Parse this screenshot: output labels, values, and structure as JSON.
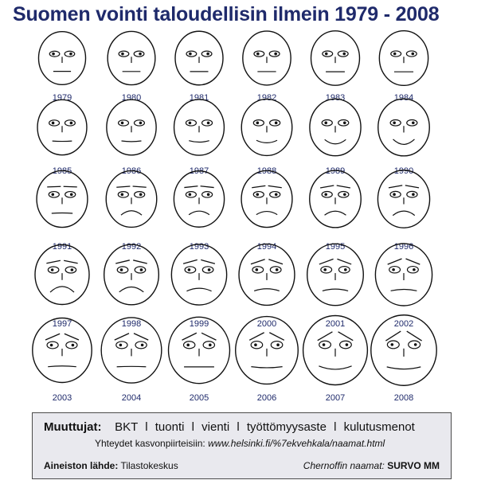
{
  "title": "Suomen vointi taloudellisin ilmein 1979 - 2008",
  "chart_data": {
    "type": "chernoff_faces",
    "title": "Suomen vointi taloudellisin ilmein 1979 - 2008",
    "variables": [
      "BKT",
      "tuonti",
      "vienti",
      "työttömyysaste",
      "kulutusmenot"
    ],
    "years": [
      "1979",
      "1980",
      "1981",
      "1982",
      "1983",
      "1984",
      "1985",
      "1986",
      "1987",
      "1988",
      "1989",
      "1990",
      "1991",
      "1992",
      "1993",
      "1994",
      "1995",
      "1996",
      "1997",
      "1998",
      "1999",
      "2000",
      "2001",
      "2002",
      "2003",
      "2004",
      "2005",
      "2006",
      "2007",
      "2008"
    ],
    "faces": [
      {
        "year": "1979",
        "size": 0.22,
        "mouth": 0.0,
        "brow": 0.0
      },
      {
        "year": "1980",
        "size": 0.24,
        "mouth": 0.0,
        "brow": 0.0
      },
      {
        "year": "1981",
        "size": 0.25,
        "mouth": 0.0,
        "brow": 0.0
      },
      {
        "year": "1982",
        "size": 0.26,
        "mouth": 0.0,
        "brow": 0.0
      },
      {
        "year": "1983",
        "size": 0.28,
        "mouth": 0.0,
        "brow": 0.0
      },
      {
        "year": "1984",
        "size": 0.29,
        "mouth": 0.0,
        "brow": 0.0
      },
      {
        "year": "1985",
        "size": 0.31,
        "mouth": 0.05,
        "brow": 0.0
      },
      {
        "year": "1986",
        "size": 0.32,
        "mouth": 0.1,
        "brow": 0.0
      },
      {
        "year": "1987",
        "size": 0.34,
        "mouth": 0.2,
        "brow": 0.0
      },
      {
        "year": "1988",
        "size": 0.36,
        "mouth": 0.35,
        "brow": 0.0
      },
      {
        "year": "1989",
        "size": 0.38,
        "mouth": 0.6,
        "brow": 0.0
      },
      {
        "year": "1990",
        "size": 0.39,
        "mouth": 0.7,
        "brow": 0.0
      },
      {
        "year": "1991",
        "size": 0.37,
        "mouth": -0.05,
        "brow": 0.05
      },
      {
        "year": "1992",
        "size": 0.36,
        "mouth": -0.6,
        "brow": 0.1
      },
      {
        "year": "1993",
        "size": 0.35,
        "mouth": -0.5,
        "brow": 0.15
      },
      {
        "year": "1994",
        "size": 0.37,
        "mouth": -0.45,
        "brow": 0.2
      },
      {
        "year": "1995",
        "size": 0.39,
        "mouth": -0.55,
        "brow": 0.25
      },
      {
        "year": "1996",
        "size": 0.41,
        "mouth": -0.6,
        "brow": 0.25
      },
      {
        "year": "1997",
        "size": 0.5,
        "mouth": -0.8,
        "brow": 0.3
      },
      {
        "year": "1998",
        "size": 0.52,
        "mouth": -0.7,
        "brow": 0.35
      },
      {
        "year": "1999",
        "size": 0.54,
        "mouth": -0.4,
        "brow": 0.4
      },
      {
        "year": "2000",
        "size": 0.56,
        "mouth": -0.3,
        "brow": 0.5
      },
      {
        "year": "2001",
        "size": 0.58,
        "mouth": -0.25,
        "brow": 0.55
      },
      {
        "year": "2002",
        "size": 0.6,
        "mouth": -0.2,
        "brow": 0.6
      },
      {
        "year": "2003",
        "size": 0.7,
        "mouth": -0.1,
        "brow": 0.65
      },
      {
        "year": "2004",
        "size": 0.74,
        "mouth": -0.05,
        "brow": 0.7
      },
      {
        "year": "2005",
        "size": 0.78,
        "mouth": 0.0,
        "brow": 0.75
      },
      {
        "year": "2006",
        "size": 0.83,
        "mouth": 0.15,
        "brow": 0.8
      },
      {
        "year": "2007",
        "size": 0.9,
        "mouth": 0.45,
        "brow": 0.9
      },
      {
        "year": "2008",
        "size": 0.95,
        "mouth": 0.3,
        "brow": 1.0
      }
    ]
  },
  "info": {
    "vars_label": "Muuttujat:",
    "vars": [
      "BKT",
      "tuonti",
      "vienti",
      "työttömyysaste",
      "kulutusmenot"
    ],
    "separator": "l",
    "link_label": "Yhteydet kasvonpiirteisiin:",
    "link_url": "www.helsinki.fi/%7ekvehkala/naamat.html",
    "source_label": "Aineiston lähde:",
    "source_value": "Tilastokeskus",
    "chernoff_label": "Chernoffin naamat:",
    "chernoff_value": "SURVO MM"
  },
  "colors": {
    "title": "#1f2a6b",
    "year_label": "#1f2a6b",
    "face_stroke": "#111111",
    "box_fill": "#e9e9ee",
    "box_border": "#4a4a4a"
  }
}
